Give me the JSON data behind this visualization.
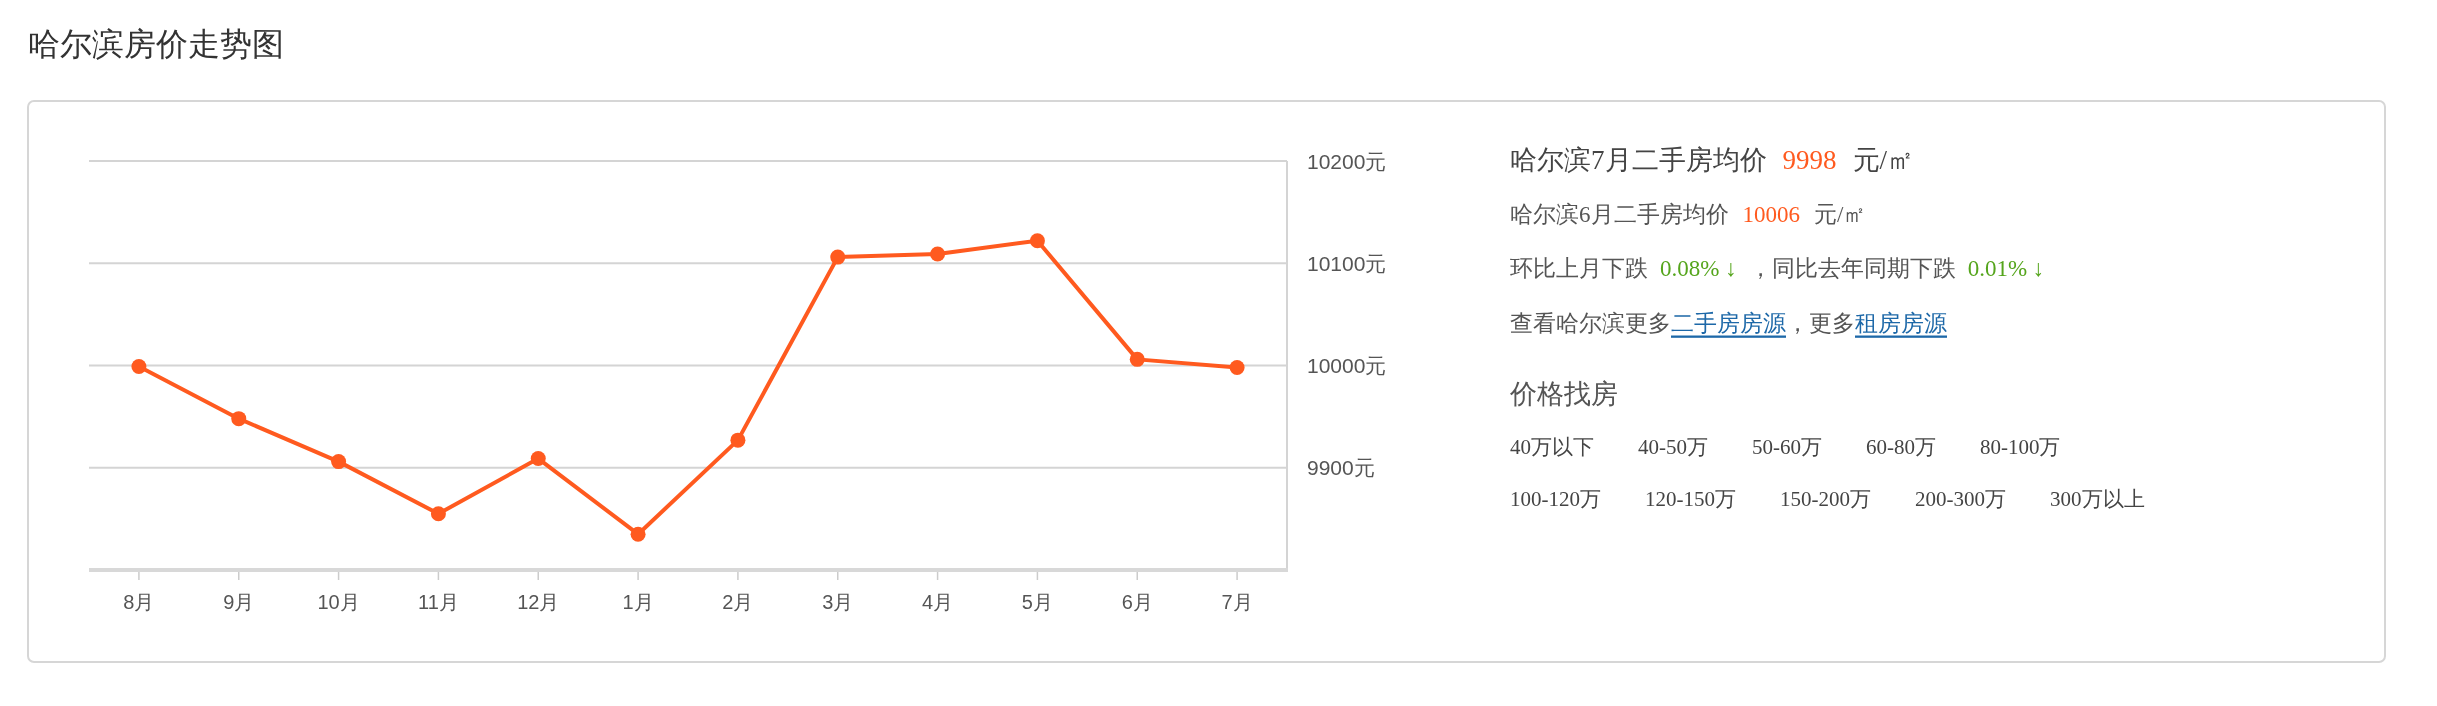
{
  "chart_data": [
    {
      "type": "line",
      "title": "哈尔滨房价走势图",
      "categories": [
        "8月",
        "9月",
        "10月",
        "11月",
        "12月",
        "1月",
        "2月",
        "3月",
        "4月",
        "5月",
        "6月",
        "7月"
      ],
      "series": [
        {
          "color": "#ff5a1f",
          "values": [
            9999,
            9948,
            9906,
            9855,
            9909,
            9835,
            9927,
            10106,
            10109,
            10122,
            10006,
            9998
          ]
        }
      ],
      "ylim": [
        9800,
        10200
      ],
      "yticks": [
        {
          "value": 9900,
          "label": "9900元"
        },
        {
          "value": 10000,
          "label": "10000元"
        },
        {
          "value": 10100,
          "label": "10100元"
        },
        {
          "value": 10200,
          "label": "10200元"
        }
      ],
      "grid": "y",
      "marker": "circle",
      "line_style": "solid"
    },
    {
      "type": "other",
      "annotations": [
        "哈尔滨7月二手房均价",
        "9998",
        "元/㎡",
        "哈尔滨6月二手房均价",
        "10006",
        "元/㎡",
        "环比上月下跌",
        "0.08% ↓",
        "，同比去年同期下跌",
        "0.01% ↓",
        "查看哈尔滨更多",
        "二手房房源",
        "，更多",
        "租房房源"
      ]
    },
    {
      "type": "other",
      "title": "价格找房",
      "annotations": [
        "40万以下",
        "40-50万",
        "50-60万",
        "60-80万",
        "80-100万",
        "100-120万",
        "120-150万",
        "150-200万",
        "200-300万",
        "300万以上"
      ]
    }
  ]
}
